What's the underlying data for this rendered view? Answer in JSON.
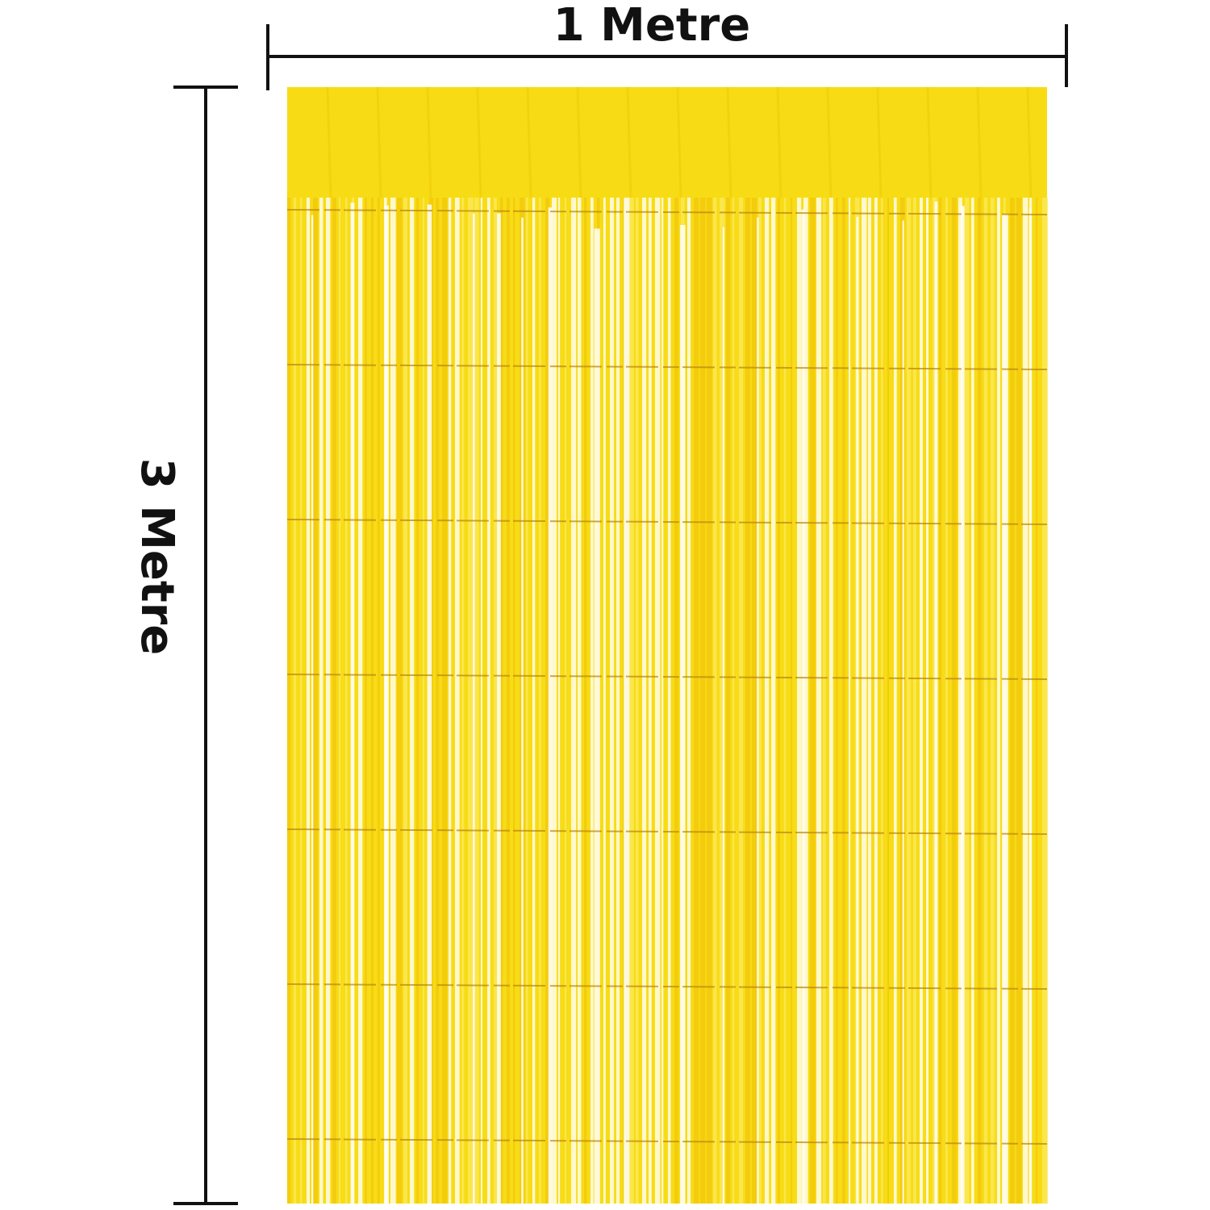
{
  "labels": {
    "width": "1 Metre",
    "height": "3 Metre"
  }
}
